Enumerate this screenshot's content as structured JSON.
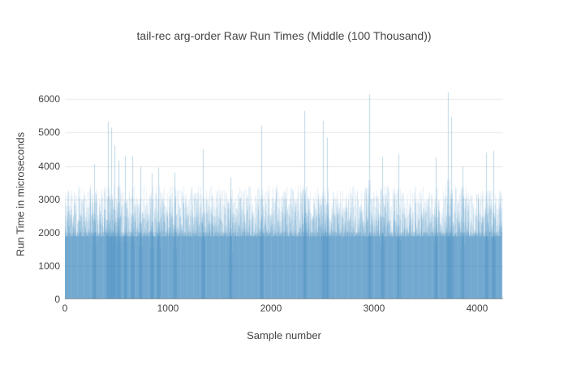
{
  "chart_data": {
    "type": "bar",
    "title": "tail-rec arg-order Raw Run Times (Middle (100 Thousand))",
    "xlabel": "Sample number",
    "ylabel": "Run Time in microseconds",
    "x_ticks": [
      0,
      1000,
      2000,
      3000,
      4000
    ],
    "y_ticks": [
      0,
      1000,
      2000,
      3000,
      4000,
      5000,
      6000
    ],
    "xlim": [
      0,
      4252
    ],
    "ylim": [
      0,
      6300
    ],
    "n_samples": 4244,
    "bar_color": "#1f77b4",
    "bar_alpha": 0.11,
    "baseline_value": 1880,
    "typical_range": [
      1880,
      3400
    ],
    "grid": true,
    "legend": "none",
    "gridline_color": "#e9e9e9",
    "axis_line_color": "#9a9a9a",
    "text_color": "#444444",
    "background": "#ffffff",
    "distribution": {
      "p_low": 0.52,
      "low_base": 1880,
      "low_span": 150,
      "p_mid": 0.3,
      "mid_base": 2030,
      "mid_span": 570,
      "p_high": 0.12,
      "high_base": 2600,
      "high_span": 450,
      "tail_base": 3050,
      "tail_span": 370,
      "stripe_period": 16,
      "stripe_base": 2400,
      "stripe_span": 900
    },
    "outliers": [
      {
        "sample": 280,
        "value": 4050
      },
      {
        "sample": 417,
        "value": 5320
      },
      {
        "sample": 449,
        "value": 5150
      },
      {
        "sample": 483,
        "value": 4620
      },
      {
        "sample": 520,
        "value": 4160
      },
      {
        "sample": 583,
        "value": 4300
      },
      {
        "sample": 653,
        "value": 4290
      },
      {
        "sample": 733,
        "value": 3980
      },
      {
        "sample": 842,
        "value": 3770
      },
      {
        "sample": 905,
        "value": 3950
      },
      {
        "sample": 1063,
        "value": 3800
      },
      {
        "sample": 1339,
        "value": 4500
      },
      {
        "sample": 1610,
        "value": 3650
      },
      {
        "sample": 1905,
        "value": 5200
      },
      {
        "sample": 2323,
        "value": 5650
      },
      {
        "sample": 2504,
        "value": 5350
      },
      {
        "sample": 2540,
        "value": 4850
      },
      {
        "sample": 2953,
        "value": 6150
      },
      {
        "sample": 3078,
        "value": 4270
      },
      {
        "sample": 3236,
        "value": 4350
      },
      {
        "sample": 3598,
        "value": 4250
      },
      {
        "sample": 3717,
        "value": 6200
      },
      {
        "sample": 3748,
        "value": 5470
      },
      {
        "sample": 3858,
        "value": 3980
      },
      {
        "sample": 4087,
        "value": 4400
      },
      {
        "sample": 4157,
        "value": 4450
      }
    ]
  }
}
